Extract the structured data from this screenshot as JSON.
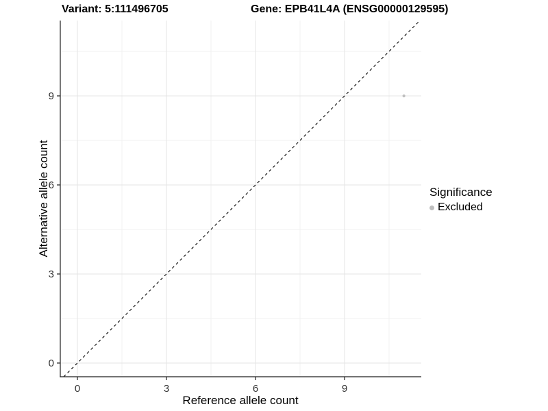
{
  "titles": {
    "left": "Variant: 5:111496705",
    "right": "Gene: EPB41L4A (ENSG00000129595)"
  },
  "chart_data": {
    "type": "scatter",
    "title": "",
    "xlabel": "Reference allele count",
    "ylabel": "Alternative allele count",
    "xlim": [
      -0.577,
      11.585
    ],
    "ylim": [
      -0.462,
      11.538
    ],
    "xticks": [
      0,
      3,
      6,
      9
    ],
    "yticks": [
      0,
      3,
      6,
      9
    ],
    "minor_xticks": [
      1.5,
      4.5,
      7.5,
      10.5
    ],
    "minor_yticks": [
      1.5,
      4.5,
      7.5,
      10.5
    ],
    "grid": true,
    "reference_line": {
      "kind": "identity y=x",
      "style": "dashed",
      "color": "#000000"
    },
    "series": [
      {
        "name": "Excluded",
        "color": "#bebebe",
        "points": [
          {
            "x": 11,
            "y": 9
          }
        ]
      }
    ],
    "legend": {
      "title": "Significance",
      "position": "right",
      "entries": [
        {
          "label": "Excluded",
          "color": "#bebebe"
        }
      ]
    }
  },
  "colors": {
    "background": "#ffffff",
    "axis_line": "#1f1f1f",
    "tick_text": "#333333",
    "grid_major": "#e4e4e4",
    "grid_minor": "#f1f1f1",
    "title_text": "#000000"
  }
}
